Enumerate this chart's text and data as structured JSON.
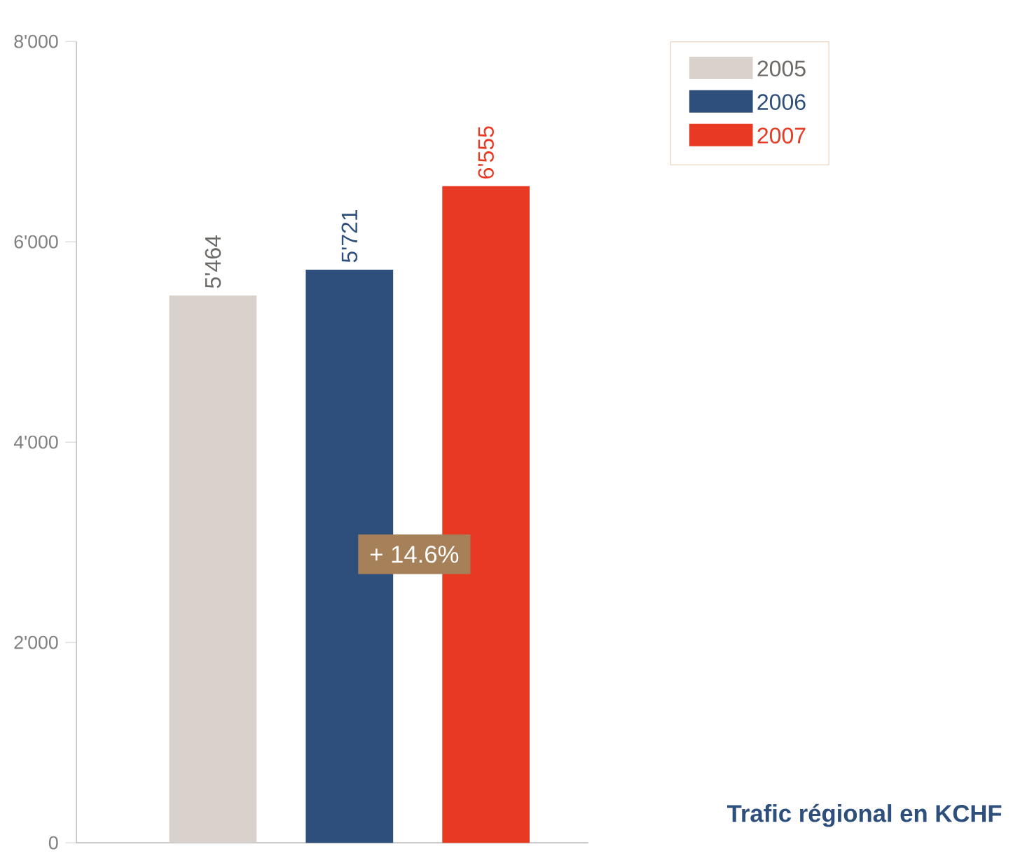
{
  "chart_data": {
    "type": "bar",
    "title": "Trafic régional en KCHF",
    "categories": [
      null,
      null,
      null
    ],
    "series": [
      {
        "name": "2005",
        "color": "#d9d1cc",
        "values": [
          5464,
          null,
          null
        ],
        "value_labels": [
          "5'464",
          null,
          null
        ]
      },
      {
        "name": "2006",
        "color": "#2e4f7b",
        "values": [
          null,
          5721,
          null
        ],
        "value_labels": [
          null,
          "5'721",
          null
        ]
      },
      {
        "name": "2007",
        "color": "#e83a22",
        "values": [
          null,
          null,
          6555
        ],
        "value_labels": [
          null,
          null,
          "6'555"
        ]
      }
    ],
    "ylim": [
      0,
      8000
    ],
    "yticks": [
      {
        "value": 0,
        "label": "0"
      },
      {
        "value": 2000,
        "label": "2'000"
      },
      {
        "value": 4000,
        "label": "4'000"
      },
      {
        "value": 6000,
        "label": "6'000"
      },
      {
        "value": 8000,
        "label": "8'000"
      }
    ],
    "annotations": [
      "+ 14.6%"
    ],
    "legend": "top right",
    "grid": false
  }
}
